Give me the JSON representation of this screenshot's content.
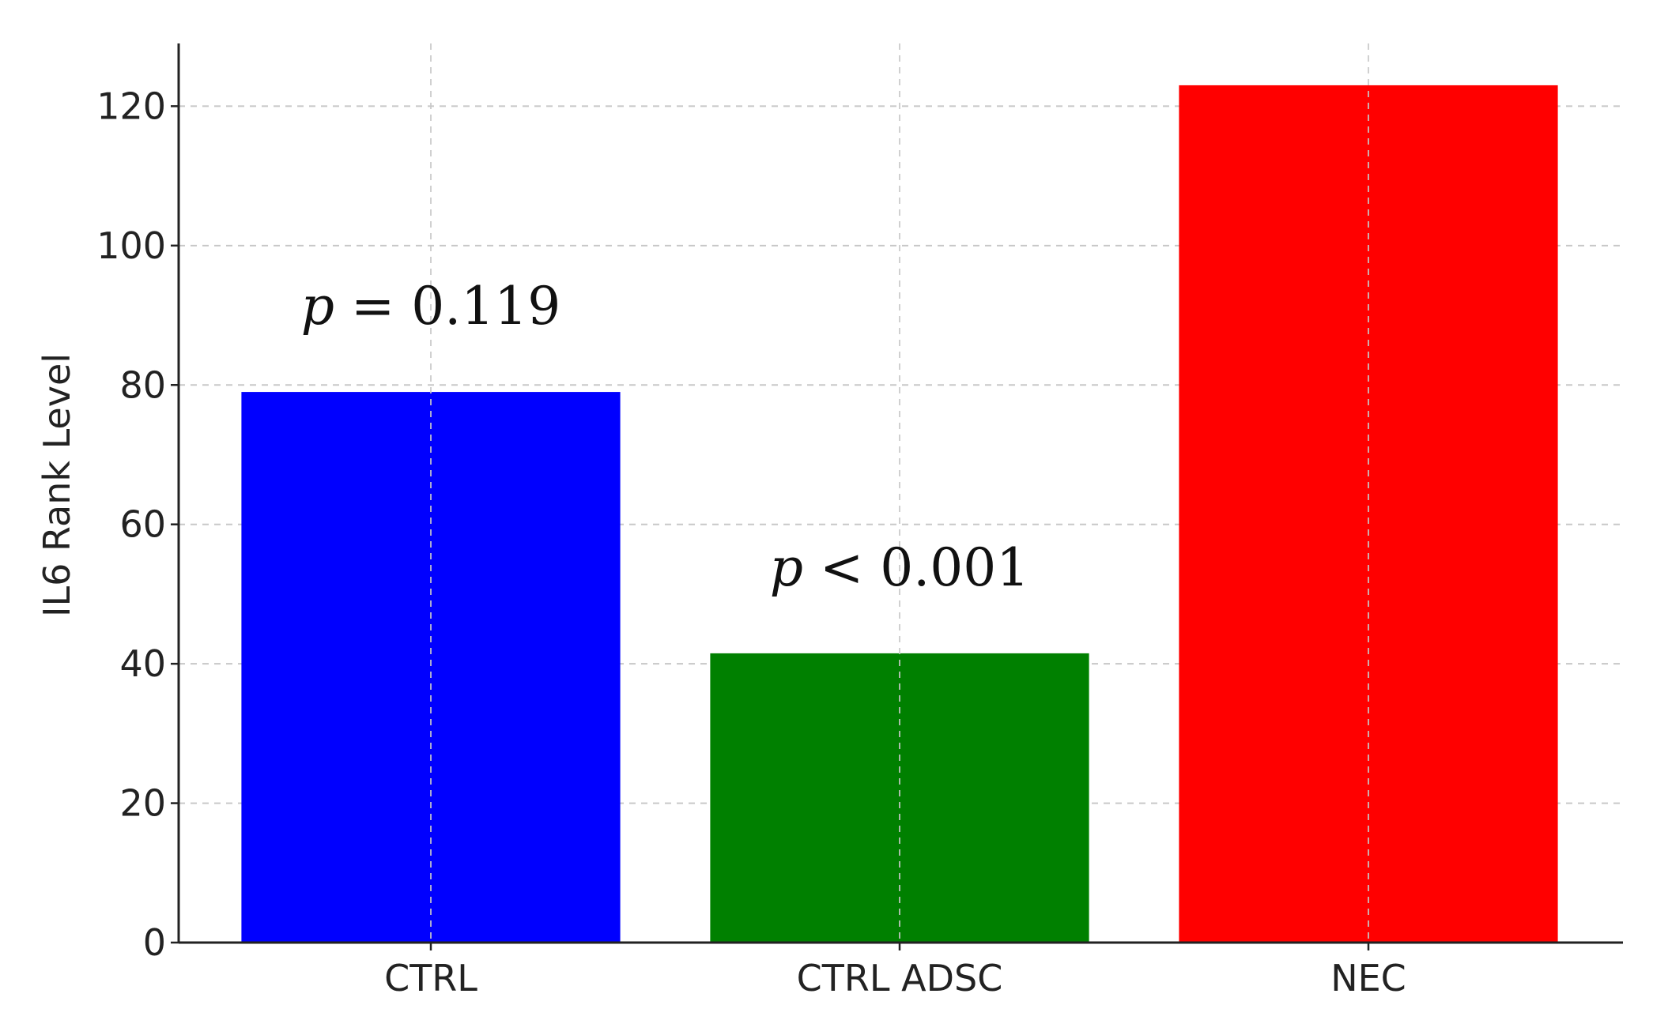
{
  "chart_data": {
    "type": "bar",
    "categories": [
      "CTRL",
      "CTRL ADSC",
      "NEC"
    ],
    "values": [
      79,
      41.5,
      123
    ],
    "colors": [
      "#0000ff",
      "#008000",
      "#ff0000"
    ],
    "title": "",
    "xlabel": "",
    "ylabel": "IL6 Rank Level",
    "ylim": [
      0,
      129
    ],
    "yticks": [
      0,
      20,
      40,
      60,
      80,
      100,
      120
    ],
    "grid": true,
    "grid_style": "dashed",
    "legend": false,
    "annotations": [
      {
        "category": "CTRL",
        "p_symbol": "p",
        "text": " = 0.119"
      },
      {
        "category": "CTRL ADSC",
        "p_symbol": "p",
        "text": " < 0.001"
      }
    ]
  }
}
